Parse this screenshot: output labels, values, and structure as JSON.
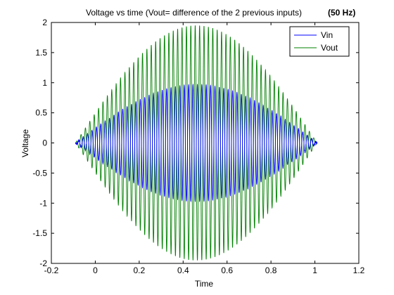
{
  "chart_data": {
    "type": "line",
    "title": "Voltage vs time (Vout= difference of the 2 previous inputs)",
    "title_suffix": "(50 Hz)",
    "xlabel": "Time",
    "ylabel": "Voltage",
    "xlim": [
      -0.2,
      1.2
    ],
    "ylim": [
      -2,
      2
    ],
    "xticks": [
      "-0.2",
      "0",
      "0.2",
      "0.4",
      "0.6",
      "0.8",
      "1",
      "1.2"
    ],
    "yticks": [
      "-2",
      "-1.5",
      "-1",
      "-0.5",
      "0",
      "0.5",
      "1",
      "1.5",
      "2"
    ],
    "grid": false,
    "legend_position": "top-right",
    "signal": {
      "frequency_hz": 50,
      "t_start": -0.09,
      "t_end": 1.01,
      "envelope_peak_time": 0.46,
      "vin_peak_amplitude": 0.97,
      "vout_peak_amplitude": 1.95
    },
    "series": [
      {
        "name": "Vin",
        "color": "#0000ff",
        "peak": 0.97
      },
      {
        "name": "Vout",
        "color": "#008000",
        "peak": 1.95
      }
    ]
  }
}
